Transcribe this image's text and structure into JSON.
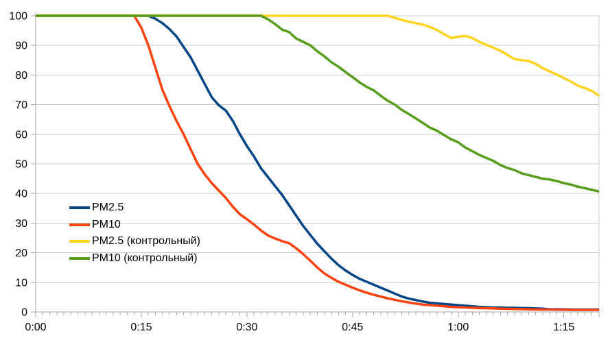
{
  "chart_data": {
    "type": "line",
    "title": "",
    "xlabel": "",
    "ylabel": "",
    "legend_position": "inside-left-middle",
    "grid": true,
    "colors": {
      "gridline": "#c9c9c9",
      "axis": "#a6a6a6",
      "tick": "#a6a6a6",
      "text": "#000000",
      "background": "#ffffff"
    },
    "x_axis": {
      "unit": "h:mm",
      "range_minutes": [
        0,
        80
      ],
      "major_tick_minutes": [
        0,
        15,
        30,
        45,
        60,
        75
      ],
      "tick_labels": [
        "0:00",
        "0:15",
        "0:30",
        "0:45",
        "1:00",
        "1:15"
      ],
      "minor_tick_every_minutes": 1
    },
    "y_axis": {
      "range": [
        0,
        100
      ],
      "ticks": [
        0,
        10,
        20,
        30,
        40,
        50,
        60,
        70,
        80,
        90,
        100
      ],
      "tick_labels": [
        "0",
        "10",
        "20",
        "30",
        "40",
        "50",
        "60",
        "70",
        "80",
        "90",
        "100"
      ]
    },
    "x_step_minutes": 1,
    "series": [
      {
        "name": "PM2.5",
        "color": "#004586",
        "values": [
          100,
          100,
          100,
          100,
          100,
          100,
          100,
          100,
          100,
          100,
          100,
          100,
          100,
          100,
          100,
          100,
          100,
          99,
          97.5,
          95.5,
          93,
          89.5,
          86,
          81.5,
          77,
          72.5,
          69.8,
          68,
          64.5,
          60,
          56,
          52.5,
          48.5,
          45.5,
          42.5,
          39.5,
          36,
          32.5,
          29,
          26,
          23,
          20.5,
          18,
          15.8,
          14,
          12.5,
          11.2,
          10.2,
          9.2,
          8.2,
          7.2,
          6.2,
          5.2,
          4.5,
          4,
          3.5,
          3.1,
          2.9,
          2.7,
          2.5,
          2.3,
          2.1,
          1.9,
          1.7,
          1.6,
          1.5,
          1.5,
          1.4,
          1.4,
          1.3,
          1.3,
          1.2,
          1.1,
          0.9,
          0.9,
          0.9,
          0.8,
          0.8,
          0.8,
          0.8,
          0.8
        ]
      },
      {
        "name": "PM10",
        "color": "#FF420E",
        "values": [
          100,
          100,
          100,
          100,
          100,
          100,
          100,
          100,
          100,
          100,
          100,
          100,
          100,
          100,
          100,
          96,
          90,
          82.5,
          75,
          69.5,
          64.5,
          60,
          55,
          50,
          46.5,
          43.5,
          41,
          38.5,
          35.5,
          33,
          31.3,
          29.5,
          27.5,
          25.8,
          24.8,
          23.9,
          23.2,
          21.5,
          19.5,
          17.3,
          15,
          13,
          11.5,
          10.2,
          9.2,
          8.2,
          7.3,
          6.5,
          5.8,
          5.2,
          4.6,
          4.1,
          3.6,
          3.2,
          2.8,
          2.5,
          2.3,
          2.1,
          1.9,
          1.7,
          1.6,
          1.5,
          1.4,
          1.3,
          1.25,
          1.2,
          1.1,
          1.05,
          1,
          0.95,
          0.9,
          0.85,
          0.8,
          0.8,
          0.75,
          0.75,
          0.7,
          0.7,
          0.7,
          0.7,
          0.7
        ]
      },
      {
        "name": "PM2.5 (контрольный)",
        "color": "#FFD320",
        "values": [
          100,
          100,
          100,
          100,
          100,
          100,
          100,
          100,
          100,
          100,
          100,
          100,
          100,
          100,
          100,
          100,
          100,
          100,
          100,
          100,
          100,
          100,
          100,
          100,
          100,
          100,
          100,
          100,
          100,
          100,
          100,
          100,
          100,
          100,
          100,
          100,
          100,
          100,
          100,
          100,
          100,
          100,
          100,
          100,
          100,
          100,
          100,
          100,
          100,
          100,
          100,
          99.3,
          98.6,
          98,
          97.5,
          97,
          96.2,
          95.2,
          93.8,
          92.5,
          92.9,
          93.2,
          92.5,
          91.2,
          90.2,
          89.2,
          88.2,
          86.8,
          85.4,
          85,
          84.7,
          83.8,
          82.3,
          81.2,
          80.2,
          79,
          77.8,
          76.4,
          75.6,
          74.6,
          73
        ]
      },
      {
        "name": "PM10 (контрольный)",
        "color": "#579D1C",
        "values": [
          100,
          100,
          100,
          100,
          100,
          100,
          100,
          100,
          100,
          100,
          100,
          100,
          100,
          100,
          100,
          100,
          100,
          100,
          100,
          100,
          100,
          100,
          100,
          100,
          100,
          100,
          100,
          100,
          100,
          100,
          100,
          100,
          100,
          98.8,
          97.2,
          95.3,
          94.5,
          92.3,
          91.2,
          90,
          88,
          86.3,
          84.3,
          82.8,
          81,
          79.3,
          77.5,
          76,
          74.8,
          73,
          71.3,
          70,
          68.2,
          66.8,
          65.3,
          63.8,
          62.2,
          61.2,
          59.7,
          58.3,
          57.3,
          55.5,
          54.3,
          53,
          52,
          51,
          49.6,
          48.6,
          47.9,
          46.8,
          46.2,
          45.6,
          45,
          44.7,
          44.2,
          43.5,
          43,
          42.3,
          41.8,
          41.2,
          40.7
        ]
      }
    ]
  }
}
